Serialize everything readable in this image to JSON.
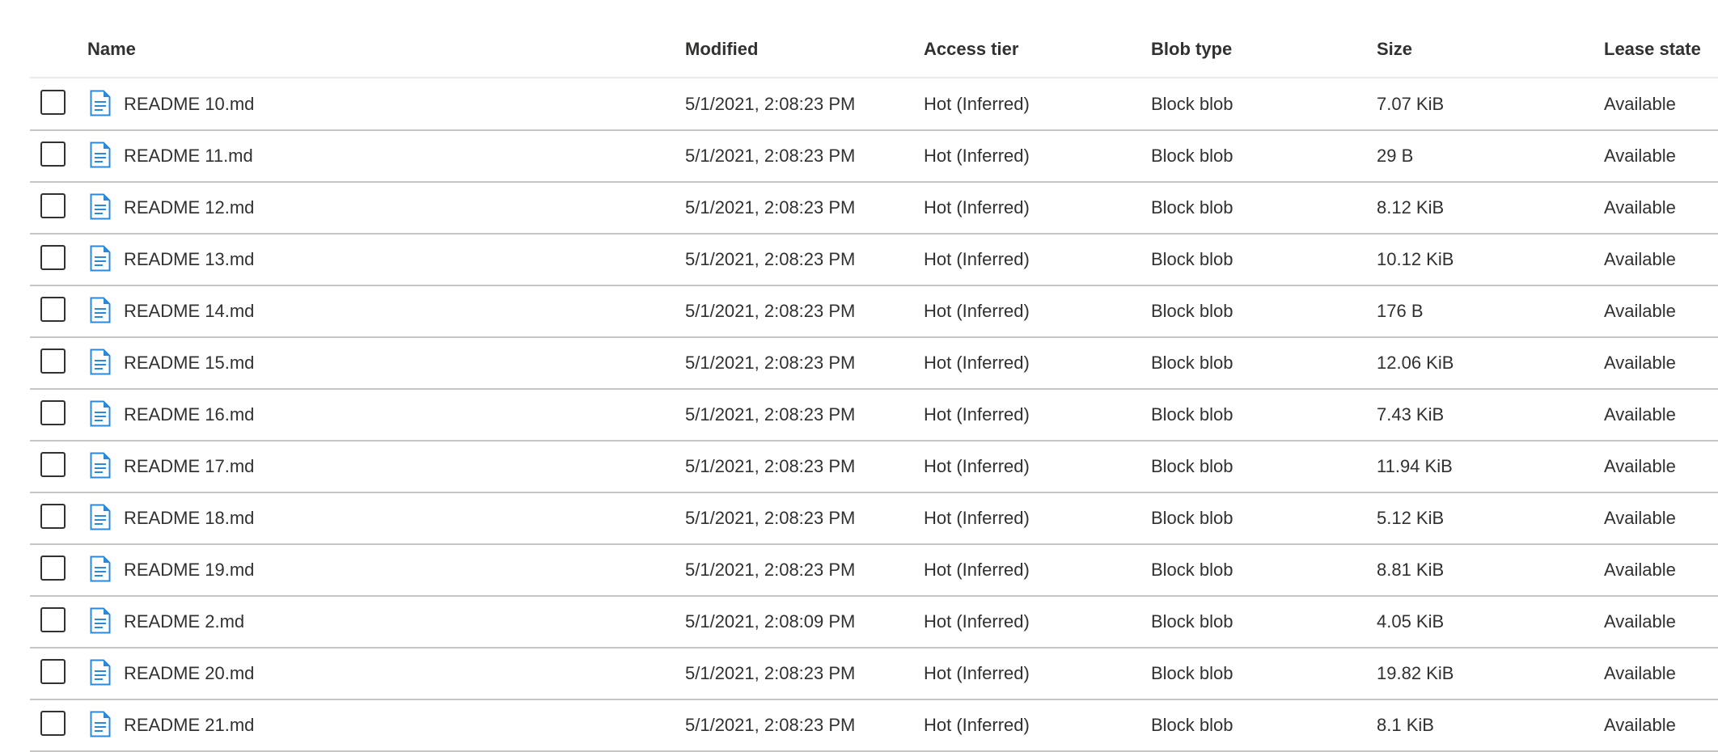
{
  "columns": [
    "Name",
    "Modified",
    "Access tier",
    "Blob type",
    "Size",
    "Lease state"
  ],
  "icon_color": "#2b88d8",
  "rows": [
    {
      "name": "README 10.md",
      "modified": "5/1/2021, 2:08:23 PM",
      "tier": "Hot (Inferred)",
      "type": "Block blob",
      "size": "7.07 KiB",
      "lease": "Available"
    },
    {
      "name": "README 11.md",
      "modified": "5/1/2021, 2:08:23 PM",
      "tier": "Hot (Inferred)",
      "type": "Block blob",
      "size": "29 B",
      "lease": "Available"
    },
    {
      "name": "README 12.md",
      "modified": "5/1/2021, 2:08:23 PM",
      "tier": "Hot (Inferred)",
      "type": "Block blob",
      "size": "8.12 KiB",
      "lease": "Available"
    },
    {
      "name": "README 13.md",
      "modified": "5/1/2021, 2:08:23 PM",
      "tier": "Hot (Inferred)",
      "type": "Block blob",
      "size": "10.12 KiB",
      "lease": "Available"
    },
    {
      "name": "README 14.md",
      "modified": "5/1/2021, 2:08:23 PM",
      "tier": "Hot (Inferred)",
      "type": "Block blob",
      "size": "176 B",
      "lease": "Available"
    },
    {
      "name": "README 15.md",
      "modified": "5/1/2021, 2:08:23 PM",
      "tier": "Hot (Inferred)",
      "type": "Block blob",
      "size": "12.06 KiB",
      "lease": "Available"
    },
    {
      "name": "README 16.md",
      "modified": "5/1/2021, 2:08:23 PM",
      "tier": "Hot (Inferred)",
      "type": "Block blob",
      "size": "7.43 KiB",
      "lease": "Available"
    },
    {
      "name": "README 17.md",
      "modified": "5/1/2021, 2:08:23 PM",
      "tier": "Hot (Inferred)",
      "type": "Block blob",
      "size": "11.94 KiB",
      "lease": "Available"
    },
    {
      "name": "README 18.md",
      "modified": "5/1/2021, 2:08:23 PM",
      "tier": "Hot (Inferred)",
      "type": "Block blob",
      "size": "5.12 KiB",
      "lease": "Available"
    },
    {
      "name": "README 19.md",
      "modified": "5/1/2021, 2:08:23 PM",
      "tier": "Hot (Inferred)",
      "type": "Block blob",
      "size": "8.81 KiB",
      "lease": "Available"
    },
    {
      "name": "README 2.md",
      "modified": "5/1/2021, 2:08:09 PM",
      "tier": "Hot (Inferred)",
      "type": "Block blob",
      "size": "4.05 KiB",
      "lease": "Available"
    },
    {
      "name": "README 20.md",
      "modified": "5/1/2021, 2:08:23 PM",
      "tier": "Hot (Inferred)",
      "type": "Block blob",
      "size": "19.82 KiB",
      "lease": "Available"
    },
    {
      "name": "README 21.md",
      "modified": "5/1/2021, 2:08:23 PM",
      "tier": "Hot (Inferred)",
      "type": "Block blob",
      "size": "8.1 KiB",
      "lease": "Available"
    }
  ]
}
